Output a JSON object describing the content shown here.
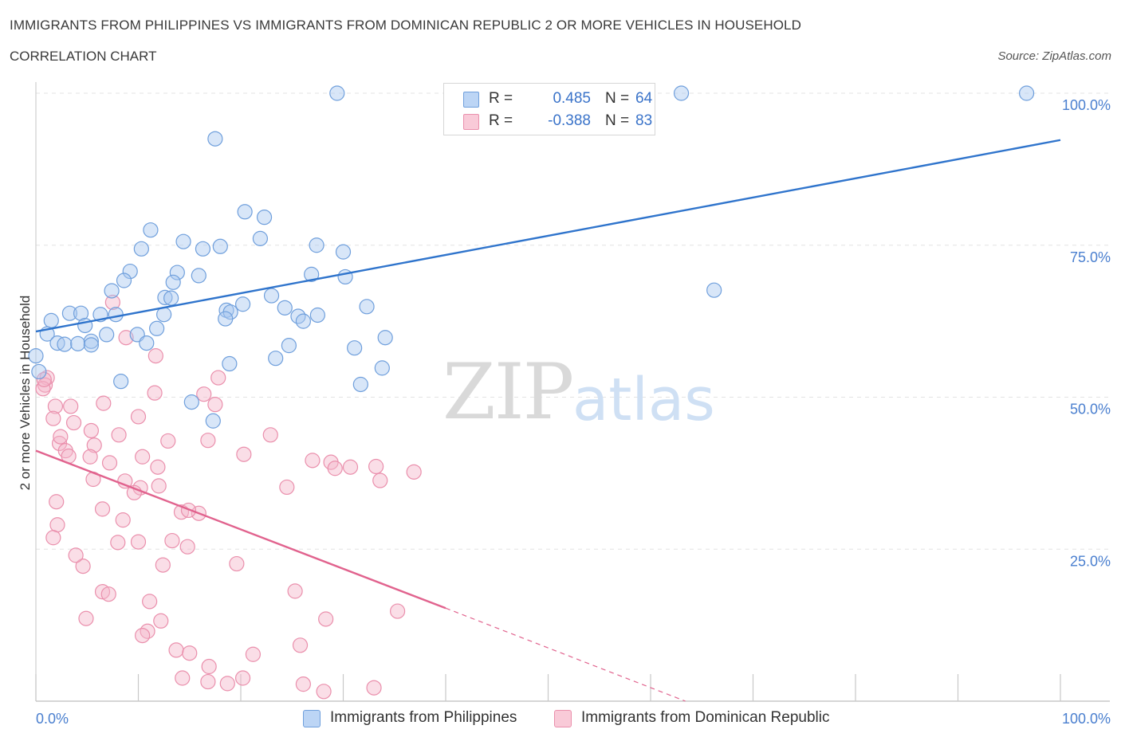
{
  "header": {
    "title": "IMMIGRANTS FROM PHILIPPINES VS IMMIGRANTS FROM DOMINICAN REPUBLIC 2 OR MORE VEHICLES IN HOUSEHOLD",
    "subtitle": "CORRELATION CHART",
    "source": "Source: ZipAtlas.com"
  },
  "watermark": {
    "zip": "ZIP",
    "atlas": "atlas"
  },
  "stats_legend": {
    "rows": [
      {
        "r_label": "R =",
        "r_value": "0.485",
        "n_label": "N =",
        "n_value": "64",
        "color": "#a9c8f0"
      },
      {
        "r_label": "R =",
        "r_value": "-0.388",
        "n_label": "N =",
        "n_value": "83",
        "color": "#f5b6c9"
      }
    ]
  },
  "bottom_legend": {
    "items": [
      {
        "label": "Immigrants from Philippines",
        "color": "#a9c8f0"
      },
      {
        "label": "Immigrants from Dominican Republic",
        "color": "#f5b6c9"
      }
    ]
  },
  "chart_data": {
    "type": "scatter",
    "title": "IMMIGRANTS FROM PHILIPPINES VS IMMIGRANTS FROM DOMINICAN REPUBLIC 2 OR MORE VEHICLES IN HOUSEHOLD",
    "subtitle": "CORRELATION CHART",
    "xlabel": "",
    "ylabel": "2 or more Vehicles in Household",
    "xlim": [
      0,
      100
    ],
    "ylim": [
      0,
      100
    ],
    "x_tick_labels": [
      "0.0%",
      "100.0%"
    ],
    "y_ticks": [
      25,
      50,
      75,
      100
    ],
    "y_tick_labels": [
      "25.0%",
      "50.0%",
      "75.0%",
      "100.0%"
    ],
    "grid": true,
    "legend_position": "top-center",
    "series": [
      {
        "name": "Immigrants from Philippines",
        "color": "#a9c8f0",
        "stroke": "#6f9fdc",
        "trend": {
          "x": [
            0,
            100
          ],
          "y": [
            60.8,
            92.3
          ],
          "color": "#2f74cc"
        },
        "points": [
          [
            29.4,
            100
          ],
          [
            63.0,
            100
          ],
          [
            96.7,
            100
          ],
          [
            17.5,
            92.5
          ],
          [
            20.4,
            80.5
          ],
          [
            22.3,
            79.6
          ],
          [
            11.2,
            77.5
          ],
          [
            21.9,
            76.1
          ],
          [
            14.4,
            75.6
          ],
          [
            10.3,
            74.4
          ],
          [
            16.3,
            74.4
          ],
          [
            18.0,
            74.8
          ],
          [
            27.4,
            75.0
          ],
          [
            30.0,
            73.9
          ],
          [
            9.2,
            70.7
          ],
          [
            13.8,
            70.5
          ],
          [
            15.9,
            70.0
          ],
          [
            26.9,
            70.2
          ],
          [
            30.2,
            69.8
          ],
          [
            8.6,
            69.2
          ],
          [
            13.4,
            68.9
          ],
          [
            7.4,
            67.5
          ],
          [
            66.2,
            67.6
          ],
          [
            12.6,
            66.4
          ],
          [
            13.2,
            66.3
          ],
          [
            23.0,
            66.7
          ],
          [
            20.2,
            65.3
          ],
          [
            24.3,
            64.7
          ],
          [
            18.6,
            64.3
          ],
          [
            19.0,
            64.0
          ],
          [
            25.6,
            63.3
          ],
          [
            26.1,
            62.5
          ],
          [
            27.5,
            63.5
          ],
          [
            3.3,
            63.8
          ],
          [
            4.4,
            63.8
          ],
          [
            6.3,
            63.6
          ],
          [
            7.8,
            63.6
          ],
          [
            12.5,
            63.6
          ],
          [
            18.5,
            62.9
          ],
          [
            1.5,
            62.6
          ],
          [
            4.8,
            61.8
          ],
          [
            11.8,
            61.3
          ],
          [
            1.1,
            60.4
          ],
          [
            6.9,
            60.3
          ],
          [
            9.9,
            60.3
          ],
          [
            2.1,
            58.9
          ],
          [
            2.8,
            58.7
          ],
          [
            4.1,
            58.8
          ],
          [
            5.4,
            59.2
          ],
          [
            10.8,
            58.9
          ],
          [
            5.4,
            58.6
          ],
          [
            24.7,
            58.5
          ],
          [
            31.1,
            58.1
          ],
          [
            34.1,
            59.8
          ],
          [
            0.0,
            56.8
          ],
          [
            23.4,
            56.4
          ],
          [
            33.8,
            54.8
          ],
          [
            0.3,
            54.2
          ],
          [
            8.3,
            52.6
          ],
          [
            31.7,
            52.1
          ],
          [
            15.2,
            49.2
          ],
          [
            17.3,
            46.1
          ],
          [
            18.9,
            55.5
          ],
          [
            32.3,
            64.9
          ]
        ]
      },
      {
        "name": "Immigrants from Dominican Republic",
        "color": "#f5b6c9",
        "stroke": "#ea8fac",
        "trend": {
          "x": [
            0,
            40.0
          ],
          "y": [
            41.2,
            15.3
          ],
          "dash_to": [
            63.4,
            0
          ],
          "color": "#e1638e"
        },
        "points": [
          [
            7.5,
            65.6
          ],
          [
            8.8,
            59.8
          ],
          [
            11.7,
            56.8
          ],
          [
            1.1,
            53.2
          ],
          [
            0.9,
            52.0
          ],
          [
            0.7,
            51.4
          ],
          [
            17.8,
            53.2
          ],
          [
            11.6,
            50.7
          ],
          [
            16.4,
            50.5
          ],
          [
            1.9,
            48.5
          ],
          [
            3.4,
            48.5
          ],
          [
            6.6,
            49.0
          ],
          [
            17.5,
            48.8
          ],
          [
            1.7,
            46.5
          ],
          [
            3.7,
            45.8
          ],
          [
            10.0,
            46.8
          ],
          [
            5.4,
            44.5
          ],
          [
            8.1,
            43.8
          ],
          [
            22.9,
            43.8
          ],
          [
            2.3,
            42.4
          ],
          [
            5.7,
            42.1
          ],
          [
            12.9,
            42.8
          ],
          [
            16.8,
            42.9
          ],
          [
            2.4,
            43.5
          ],
          [
            2.9,
            41.2
          ],
          [
            3.2,
            40.3
          ],
          [
            10.4,
            40.2
          ],
          [
            20.3,
            40.6
          ],
          [
            5.3,
            40.2
          ],
          [
            7.2,
            39.2
          ],
          [
            11.9,
            38.5
          ],
          [
            27.0,
            39.6
          ],
          [
            28.8,
            39.3
          ],
          [
            29.2,
            38.3
          ],
          [
            30.7,
            38.5
          ],
          [
            33.2,
            38.6
          ],
          [
            36.9,
            37.7
          ],
          [
            33.6,
            36.3
          ],
          [
            5.6,
            36.5
          ],
          [
            8.7,
            36.2
          ],
          [
            10.2,
            35.1
          ],
          [
            12.0,
            35.4
          ],
          [
            24.5,
            35.2
          ],
          [
            9.6,
            34.3
          ],
          [
            2.0,
            32.8
          ],
          [
            6.5,
            31.6
          ],
          [
            14.2,
            31.1
          ],
          [
            15.9,
            30.9
          ],
          [
            8.5,
            29.8
          ],
          [
            2.1,
            29.0
          ],
          [
            1.7,
            26.9
          ],
          [
            8.0,
            26.1
          ],
          [
            10.0,
            26.2
          ],
          [
            13.3,
            26.4
          ],
          [
            14.8,
            25.4
          ],
          [
            4.6,
            22.2
          ],
          [
            12.4,
            22.4
          ],
          [
            19.6,
            22.6
          ],
          [
            25.3,
            18.1
          ],
          [
            6.5,
            18.0
          ],
          [
            7.1,
            17.6
          ],
          [
            11.1,
            16.4
          ],
          [
            35.3,
            14.8
          ],
          [
            4.9,
            13.6
          ],
          [
            12.2,
            13.2
          ],
          [
            28.3,
            13.5
          ],
          [
            10.9,
            11.5
          ],
          [
            10.4,
            10.8
          ],
          [
            25.8,
            9.2
          ],
          [
            13.7,
            8.4
          ],
          [
            15.0,
            7.9
          ],
          [
            21.2,
            7.7
          ],
          [
            16.9,
            5.7
          ],
          [
            14.3,
            3.8
          ],
          [
            20.2,
            3.8
          ],
          [
            18.7,
            2.9
          ],
          [
            26.1,
            2.8
          ],
          [
            33.0,
            2.2
          ],
          [
            28.1,
            1.6
          ],
          [
            16.8,
            3.2
          ],
          [
            3.9,
            24.0
          ],
          [
            14.9,
            31.4
          ],
          [
            0.8,
            52.9
          ]
        ]
      }
    ]
  }
}
